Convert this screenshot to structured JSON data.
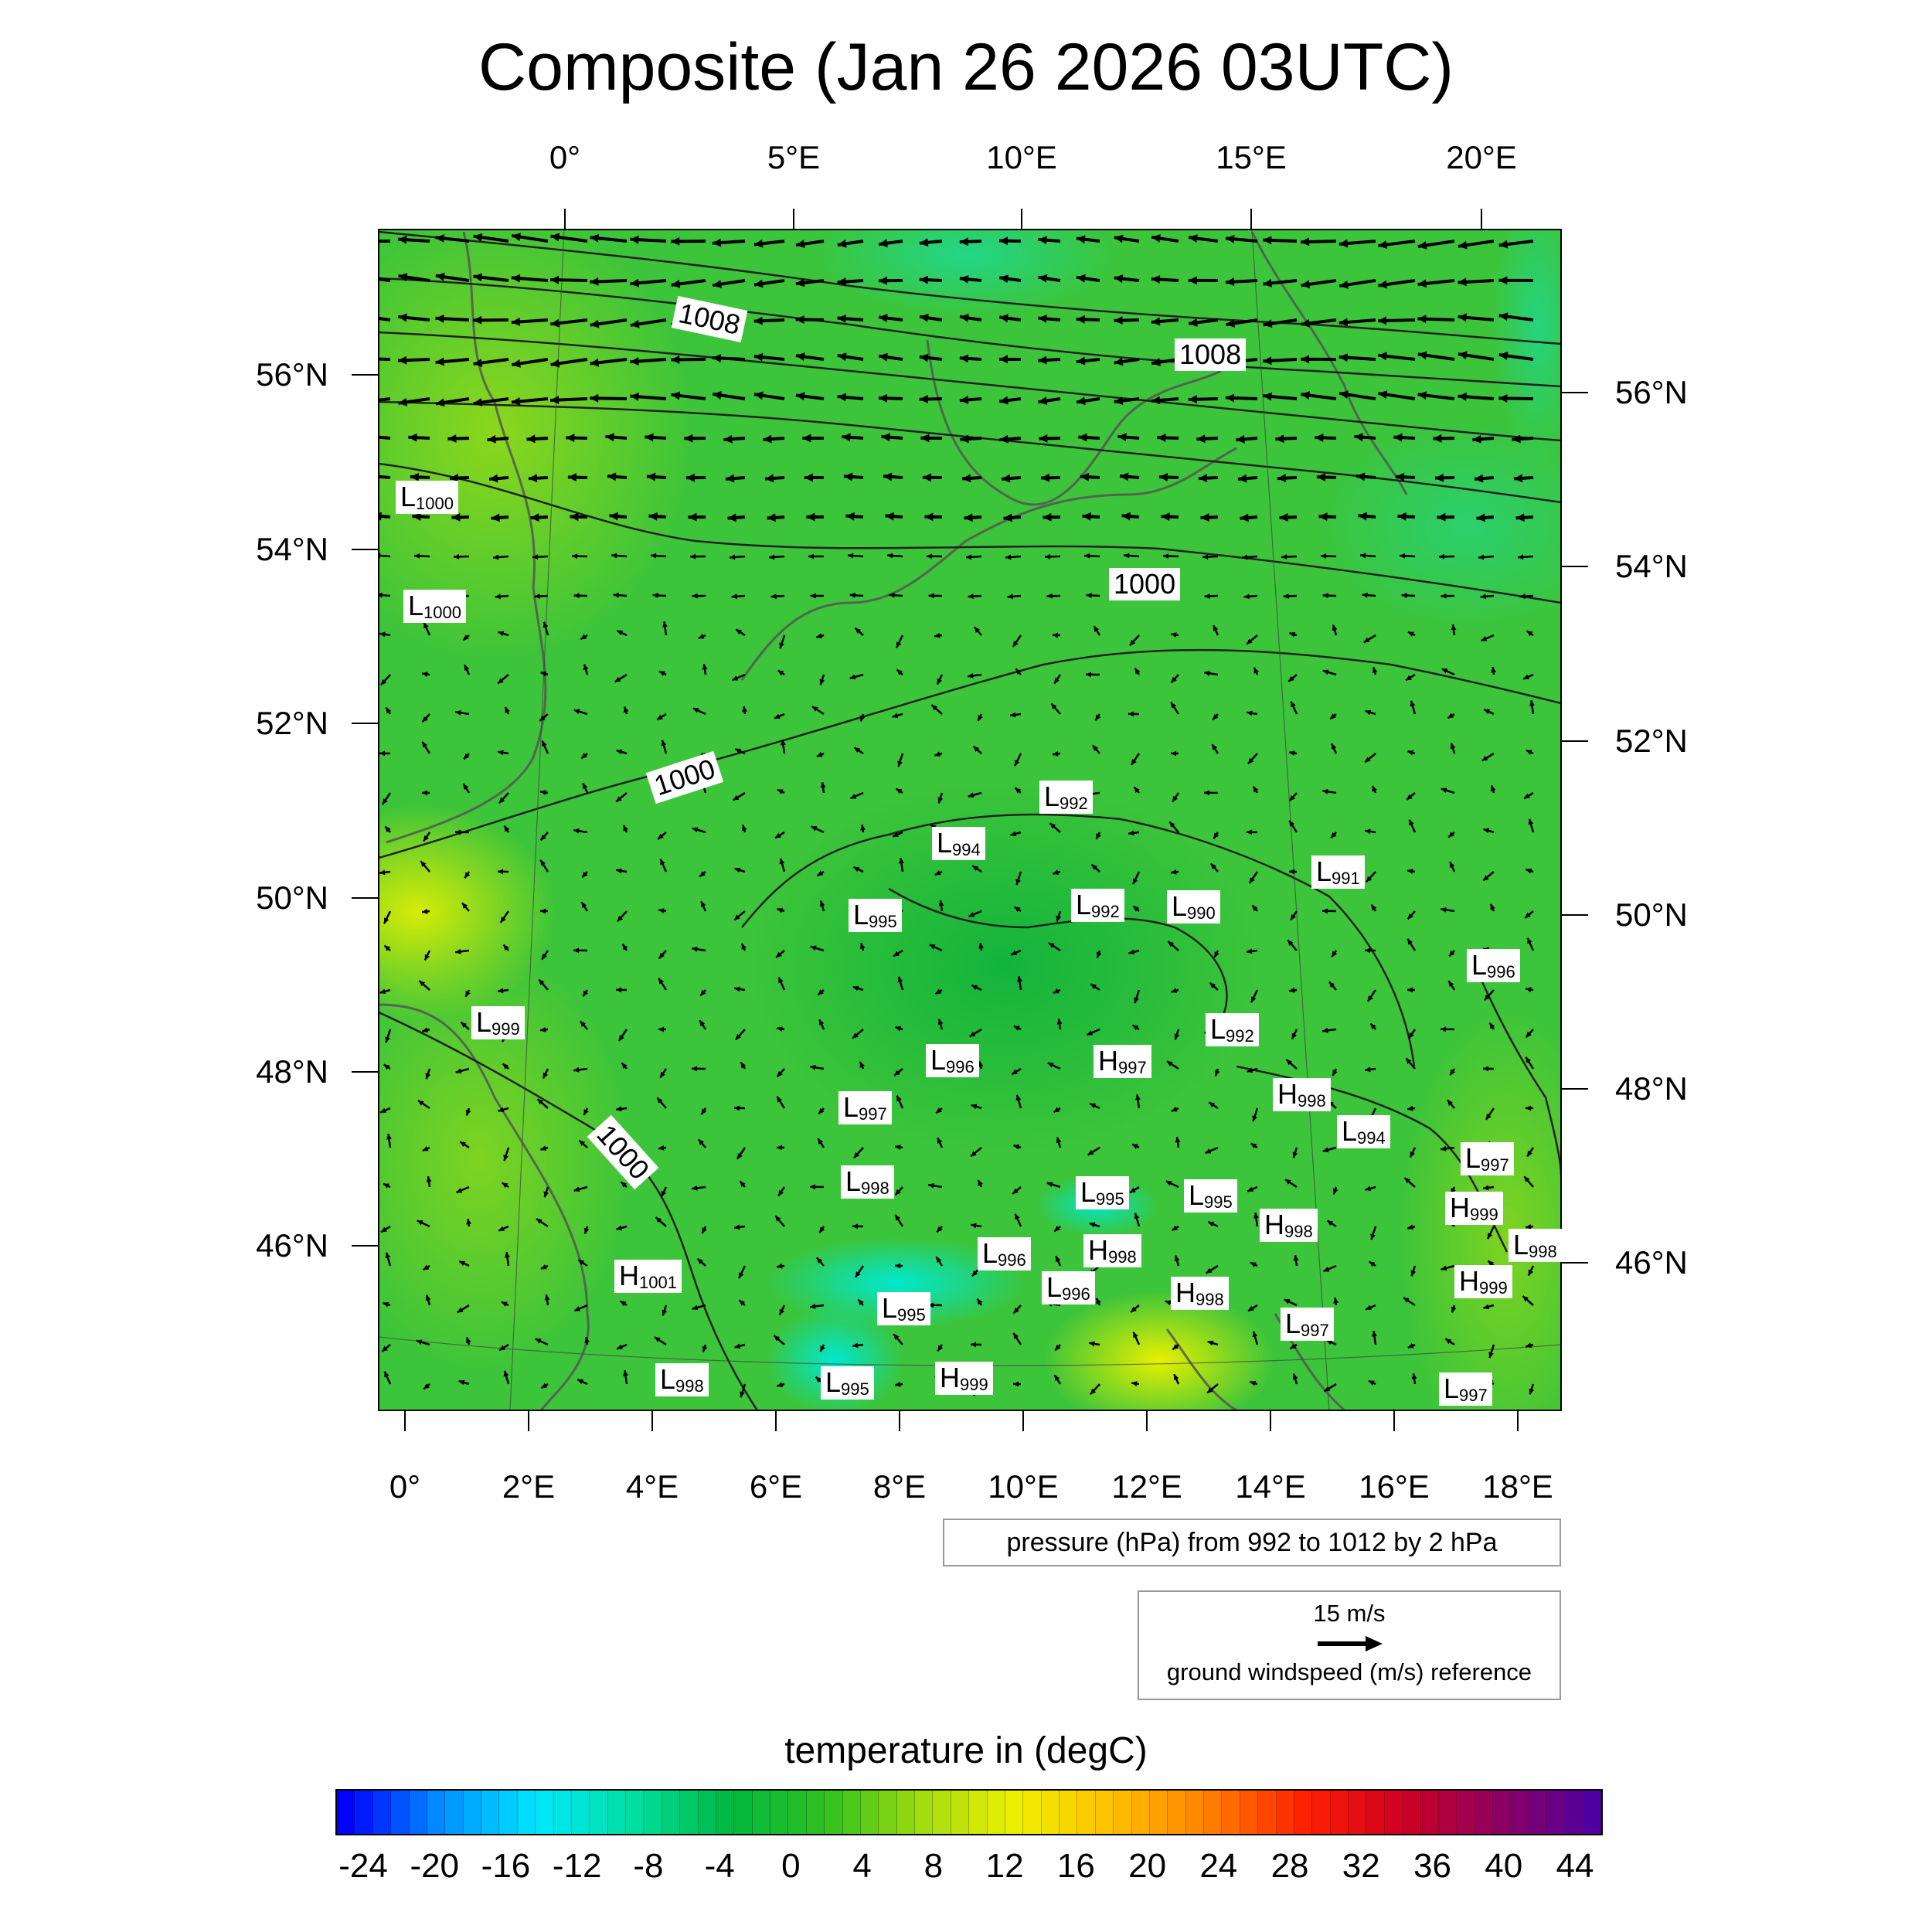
{
  "title": "Composite (Jan 26 2026 03UTC)",
  "axes": {
    "top_lon": [
      "0°",
      "5°E",
      "10°E",
      "15°E",
      "20°E"
    ],
    "bottom_lon": [
      "0°",
      "2°E",
      "4°E",
      "6°E",
      "8°E",
      "10°E",
      "12°E",
      "14°E",
      "16°E",
      "18°E"
    ],
    "left_lat": [
      "56°N",
      "54°N",
      "52°N",
      "50°N",
      "48°N",
      "46°N"
    ],
    "right_lat": [
      "56°N",
      "54°N",
      "52°N",
      "50°N",
      "48°N",
      "46°N"
    ]
  },
  "isobar_labels": [
    "1008",
    "1008",
    "1000",
    "1000",
    "1000"
  ],
  "pressure_centers": [
    {
      "type": "L",
      "value": "1000"
    },
    {
      "type": "L",
      "value": "1000"
    },
    {
      "type": "L",
      "value": "992"
    },
    {
      "type": "L",
      "value": "994"
    },
    {
      "type": "L",
      "value": "995"
    },
    {
      "type": "L",
      "value": "992"
    },
    {
      "type": "L",
      "value": "990"
    },
    {
      "type": "L",
      "value": "991"
    },
    {
      "type": "L",
      "value": "996"
    },
    {
      "type": "L",
      "value": "999"
    },
    {
      "type": "L",
      "value": "992"
    },
    {
      "type": "L",
      "value": "996"
    },
    {
      "type": "H",
      "value": "997"
    },
    {
      "type": "L",
      "value": "997"
    },
    {
      "type": "H",
      "value": "998"
    },
    {
      "type": "L",
      "value": "994"
    },
    {
      "type": "L",
      "value": "997"
    },
    {
      "type": "L",
      "value": "998"
    },
    {
      "type": "L",
      "value": "995"
    },
    {
      "type": "L",
      "value": "995"
    },
    {
      "type": "H",
      "value": "999"
    },
    {
      "type": "H",
      "value": "998"
    },
    {
      "type": "L",
      "value": "998"
    },
    {
      "type": "L",
      "value": "996"
    },
    {
      "type": "H",
      "value": "998"
    },
    {
      "type": "H",
      "value": "1001"
    },
    {
      "type": "L",
      "value": "996"
    },
    {
      "type": "H",
      "value": "998"
    },
    {
      "type": "H",
      "value": "999"
    },
    {
      "type": "L",
      "value": "995"
    },
    {
      "type": "L",
      "value": "997"
    },
    {
      "type": "L",
      "value": "998"
    },
    {
      "type": "L",
      "value": "995"
    },
    {
      "type": "H",
      "value": "999"
    },
    {
      "type": "L",
      "value": "997"
    }
  ],
  "pressure_legend": "pressure (hPa) from 992 to 1012 by 2 hPa",
  "wind_reference": {
    "value": "15 m/s",
    "label": "ground windspeed (m/s) reference"
  },
  "colorbar": {
    "title": "temperature in (degC)",
    "labels": [
      "-24",
      "-20",
      "-16",
      "-12",
      "-8",
      "-4",
      "0",
      "4",
      "8",
      "12",
      "16",
      "20",
      "24",
      "28",
      "32",
      "36",
      "40",
      "44"
    ],
    "stops": [
      "#0000ff",
      "#0090ff",
      "#00e8ff",
      "#00e0a0",
      "#00b840",
      "#30c020",
      "#a0dc10",
      "#f0f000",
      "#ffc000",
      "#ff8000",
      "#ff2000",
      "#d00020",
      "#900060",
      "#5000a0"
    ]
  },
  "colors": {
    "field_main": "#3cc43a",
    "field_cool": "#18b840",
    "field_warm": "#a6dc1a",
    "field_cold": "#00e0c8",
    "field_hot": "#e8ef00"
  }
}
